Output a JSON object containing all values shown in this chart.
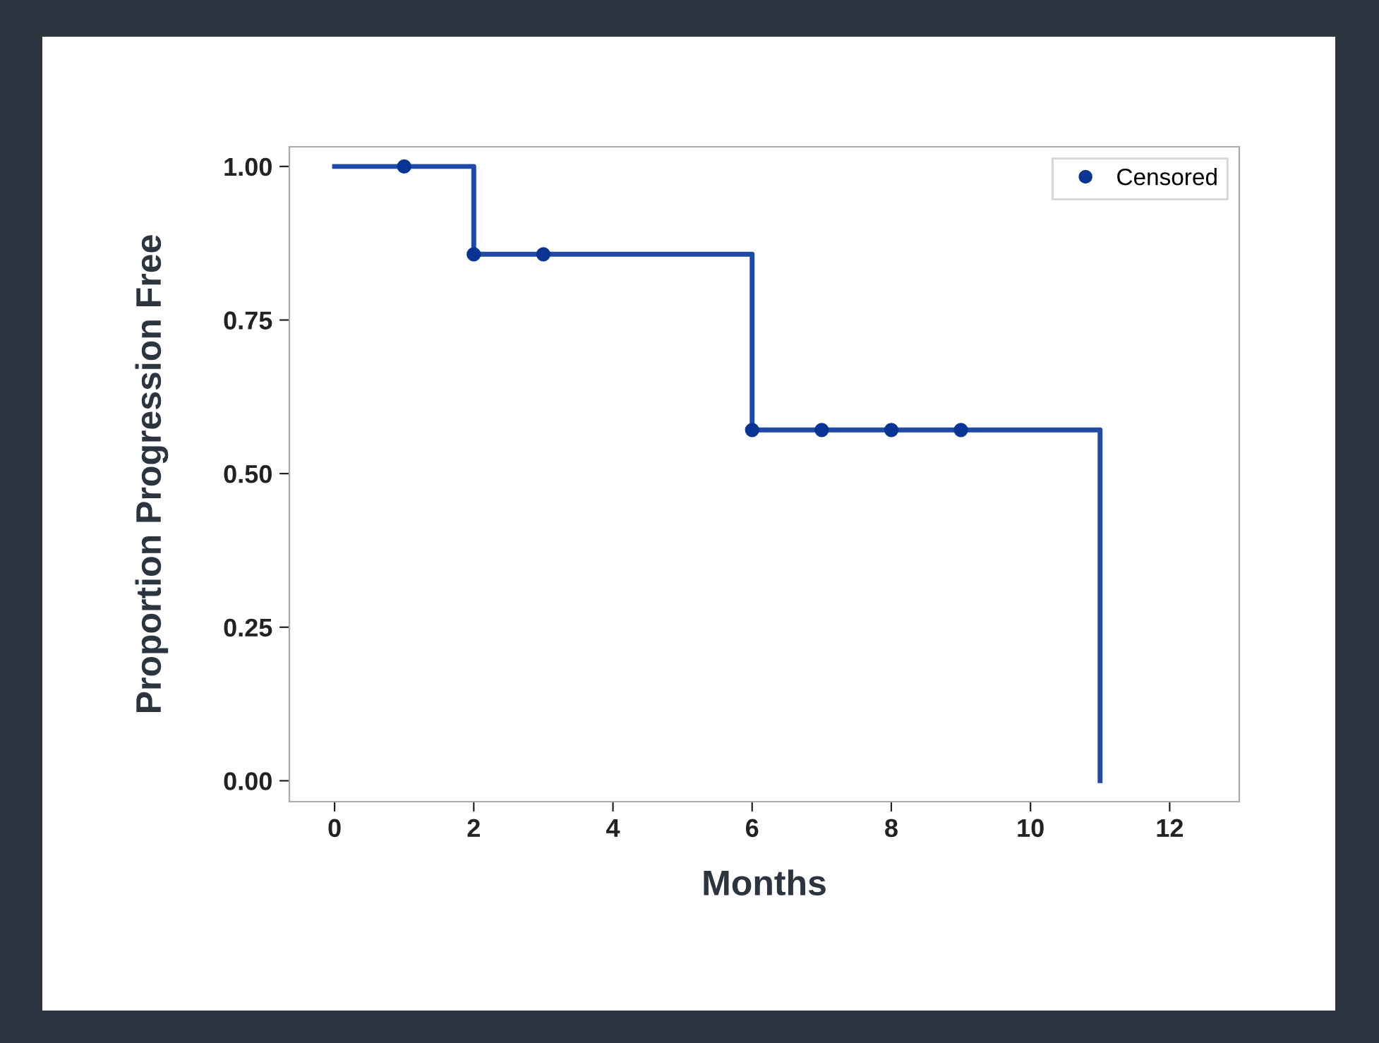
{
  "chart_data": {
    "type": "step",
    "xlabel": "Months",
    "ylabel": "Proportion Progression Free",
    "x": [
      0,
      2,
      6,
      11
    ],
    "series": [
      {
        "color": "#1f4aa8",
        "values": [
          1.0,
          0.857,
          0.571,
          0.0
        ]
      },
      {
        "type": "scatter",
        "name": "Censored",
        "color": "#0a3494",
        "marker": "circle",
        "x": [
          1,
          2,
          3,
          6,
          7,
          8,
          9
        ],
        "values": [
          1.0,
          0.857,
          0.857,
          0.571,
          0.571,
          0.571,
          0.571
        ]
      }
    ],
    "xlim": [
      -0.65,
      13.0
    ],
    "xticks": [
      0,
      2,
      4,
      6,
      8,
      10,
      12
    ],
    "ylim": [
      -0.034,
      1.032
    ],
    "yticks": [
      {
        "value": 0,
        "label": "0.00"
      },
      {
        "value": 0.25,
        "label": "0.25"
      },
      {
        "value": 0.5,
        "label": "0.50"
      },
      {
        "value": 0.75,
        "label": "0.75"
      },
      {
        "value": 1,
        "label": "1.00"
      }
    ],
    "grid": false,
    "legend": "top right"
  }
}
